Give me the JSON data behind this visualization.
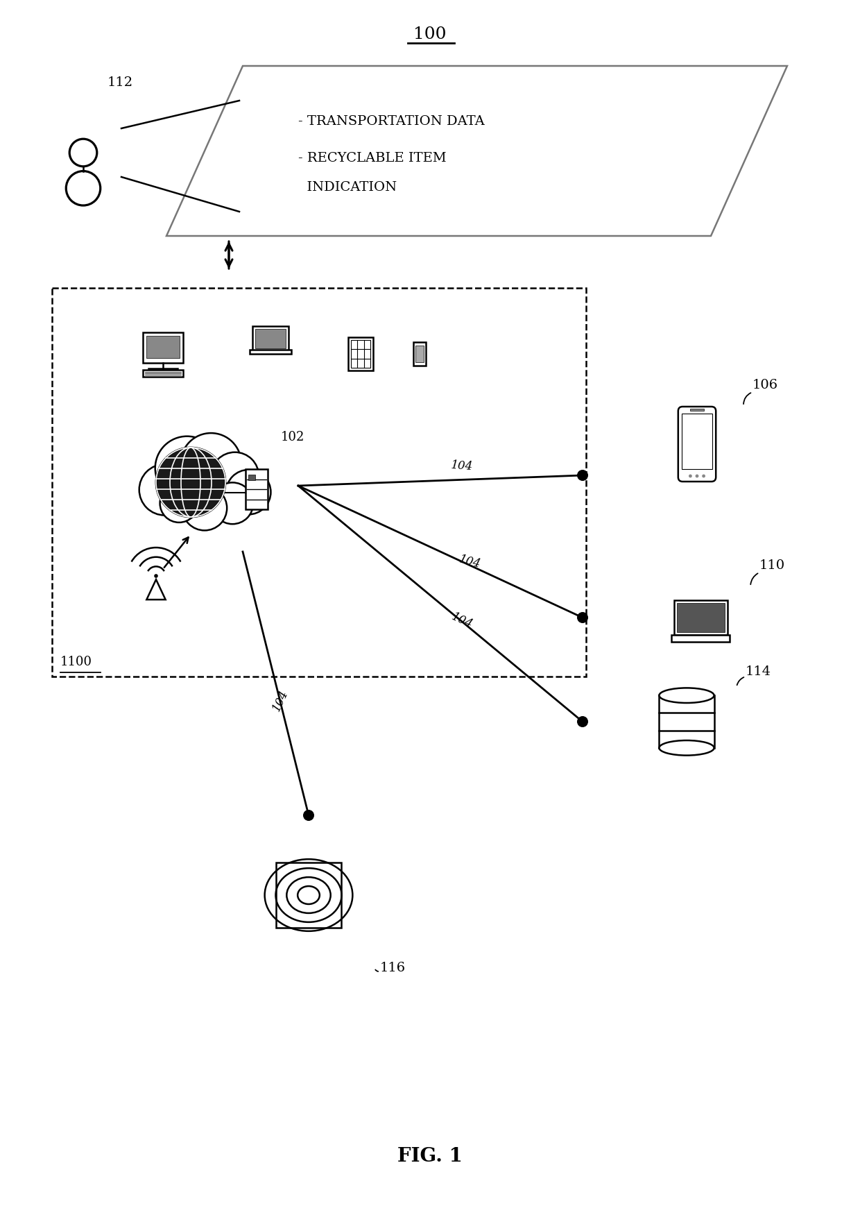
{
  "title": "100",
  "fig_label": "FIG. 1",
  "bg_color": "#ffffff",
  "line_color": "#000000",
  "label_1100": "1100",
  "label_102": "102",
  "label_104a": "104",
  "label_104b": "104",
  "label_104c": "104",
  "label_104d": "104",
  "label_106": "106",
  "label_110": "110",
  "label_112": "112",
  "label_114": "114",
  "label_116": "116",
  "para_text1": "- TRANSPORTATION DATA",
  "para_text2": "- RECYCLABLE ITEM",
  "para_text3": "  INDICATION"
}
